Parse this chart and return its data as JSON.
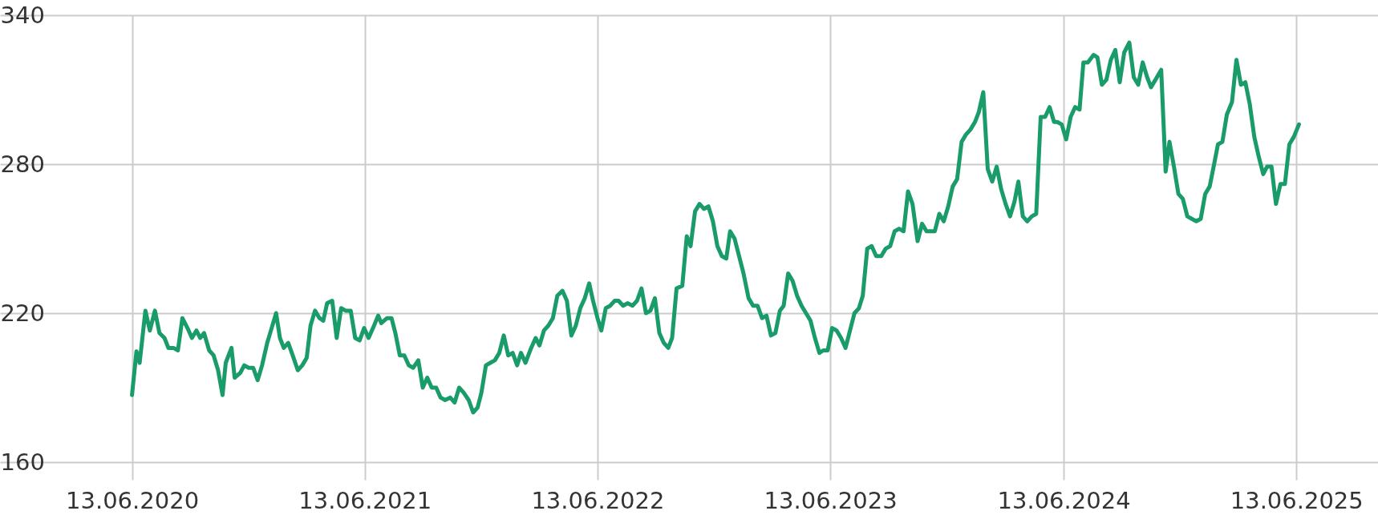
{
  "chart_data": {
    "type": "line",
    "grid": true,
    "marker": "none",
    "line_style": "solid",
    "xlim": [
      "2019-11-19",
      "2025-10-19"
    ],
    "ylim": [
      160,
      340
    ],
    "yticks": [
      160,
      220,
      280,
      340
    ],
    "xticks": [
      {
        "value": "2020-06-13",
        "label": "13.06.2020"
      },
      {
        "value": "2021-06-13",
        "label": "13.06.2021"
      },
      {
        "value": "2022-06-13",
        "label": "13.06.2022"
      },
      {
        "value": "2023-06-13",
        "label": "13.06.2023"
      },
      {
        "value": "2024-06-13",
        "label": "13.06.2024"
      },
      {
        "value": "2025-06-13",
        "label": "13.06.2025"
      }
    ],
    "x": [
      "2020-06-13",
      "2020-06-20",
      "2020-06-25",
      "2020-07-04",
      "2020-07-11",
      "2020-07-19",
      "2020-07-26",
      "2020-08-03",
      "2020-08-09",
      "2020-08-17",
      "2020-08-24",
      "2020-08-31",
      "2020-09-08",
      "2020-09-15",
      "2020-09-22",
      "2020-09-28",
      "2020-10-04",
      "2020-10-12",
      "2020-10-19",
      "2020-10-26",
      "2020-11-02",
      "2020-11-07",
      "2020-11-16",
      "2020-11-21",
      "2020-11-30",
      "2020-12-06",
      "2020-12-13",
      "2020-12-20",
      "2020-12-27",
      "2021-01-03",
      "2021-01-11",
      "2021-01-18",
      "2021-01-25",
      "2021-01-31",
      "2021-02-06",
      "2021-02-13",
      "2021-02-20",
      "2021-02-28",
      "2021-03-07",
      "2021-03-14",
      "2021-03-20",
      "2021-03-27",
      "2021-04-03",
      "2021-04-09",
      "2021-04-15",
      "2021-04-23",
      "2021-04-30",
      "2021-05-07",
      "2021-05-14",
      "2021-05-22",
      "2021-05-29",
      "2021-06-05",
      "2021-06-12",
      "2021-06-19",
      "2021-06-26",
      "2021-07-04",
      "2021-07-09",
      "2021-07-18",
      "2021-07-25",
      "2021-07-31",
      "2021-08-07",
      "2021-08-14",
      "2021-08-21",
      "2021-08-28",
      "2021-09-05",
      "2021-09-12",
      "2021-09-19",
      "2021-09-26",
      "2021-10-03",
      "2021-10-10",
      "2021-10-17",
      "2021-10-25",
      "2021-11-01",
      "2021-11-08",
      "2021-11-15",
      "2021-11-23",
      "2021-11-30",
      "2021-12-07",
      "2021-12-13",
      "2021-12-20",
      "2021-12-27",
      "2022-01-03",
      "2022-01-10",
      "2022-01-17",
      "2022-01-24",
      "2022-01-31",
      "2022-02-07",
      "2022-02-13",
      "2022-02-20",
      "2022-03-01",
      "2022-03-08",
      "2022-03-14",
      "2022-03-21",
      "2022-03-28",
      "2022-04-04",
      "2022-04-11",
      "2022-04-19",
      "2022-04-26",
      "2022-05-03",
      "2022-05-10",
      "2022-05-17",
      "2022-05-24",
      "2022-05-31",
      "2022-06-06",
      "2022-06-13",
      "2022-06-19",
      "2022-06-26",
      "2022-07-03",
      "2022-07-10",
      "2022-07-16",
      "2022-07-23",
      "2022-07-30",
      "2022-08-07",
      "2022-08-14",
      "2022-08-21",
      "2022-08-28",
      "2022-09-04",
      "2022-09-11",
      "2022-09-18",
      "2022-09-25",
      "2022-10-02",
      "2022-10-08",
      "2022-10-15",
      "2022-10-24",
      "2022-10-31",
      "2022-11-06",
      "2022-11-13",
      "2022-11-20",
      "2022-11-27",
      "2022-12-04",
      "2022-12-11",
      "2022-12-18",
      "2022-12-25",
      "2023-01-01",
      "2023-01-07",
      "2023-01-14",
      "2023-01-21",
      "2023-01-28",
      "2023-02-05",
      "2023-02-12",
      "2023-02-19",
      "2023-02-26",
      "2023-03-05",
      "2023-03-12",
      "2023-03-19",
      "2023-03-26",
      "2023-04-01",
      "2023-04-08",
      "2023-04-15",
      "2023-04-22",
      "2023-04-29",
      "2023-05-06",
      "2023-05-13",
      "2023-05-20",
      "2023-05-27",
      "2023-06-02",
      "2023-06-09",
      "2023-06-16",
      "2023-06-23",
      "2023-06-30",
      "2023-07-07",
      "2023-07-14",
      "2023-07-21",
      "2023-07-28",
      "2023-08-03",
      "2023-08-10",
      "2023-08-17",
      "2023-08-24",
      "2023-09-01",
      "2023-09-08",
      "2023-09-15",
      "2023-09-22",
      "2023-09-29",
      "2023-10-06",
      "2023-10-13",
      "2023-10-20",
      "2023-10-28",
      "2023-11-04",
      "2023-11-11",
      "2023-11-18",
      "2023-11-24",
      "2023-12-01",
      "2023-12-08",
      "2023-12-15",
      "2023-12-22",
      "2023-12-29",
      "2024-01-05",
      "2024-01-12",
      "2024-01-19",
      "2024-01-26",
      "2024-02-01",
      "2024-02-08",
      "2024-02-15",
      "2024-02-22",
      "2024-02-29",
      "2024-03-07",
      "2024-03-14",
      "2024-03-21",
      "2024-03-28",
      "2024-04-03",
      "2024-04-10",
      "2024-04-17",
      "2024-04-24",
      "2024-05-01",
      "2024-05-08",
      "2024-05-15",
      "2024-05-22",
      "2024-05-29",
      "2024-06-03",
      "2024-06-10",
      "2024-06-17",
      "2024-06-24",
      "2024-07-01",
      "2024-07-08",
      "2024-07-14",
      "2024-07-21",
      "2024-07-30",
      "2024-08-05",
      "2024-08-12",
      "2024-08-19",
      "2024-08-26",
      "2024-09-02",
      "2024-09-09",
      "2024-09-16",
      "2024-09-24",
      "2024-10-01",
      "2024-10-08",
      "2024-10-15",
      "2024-10-22",
      "2024-10-28",
      "2024-11-04",
      "2024-11-13",
      "2024-11-20",
      "2024-11-26",
      "2024-12-03",
      "2024-12-10",
      "2024-12-17",
      "2024-12-24",
      "2024-12-31",
      "2025-01-07",
      "2025-01-14",
      "2025-01-21",
      "2025-01-28",
      "2025-02-04",
      "2025-02-10",
      "2025-02-17",
      "2025-02-24",
      "2025-03-04",
      "2025-03-11",
      "2025-03-18",
      "2025-03-25",
      "2025-04-01",
      "2025-04-08",
      "2025-04-15",
      "2025-04-22",
      "2025-04-28",
      "2025-05-05",
      "2025-05-12",
      "2025-05-19",
      "2025-05-26",
      "2025-06-02",
      "2025-06-09",
      "2025-06-17"
    ],
    "series": [
      {
        "color": "#1a9c6a",
        "values": [
          187,
          204.6,
          200,
          221,
          213,
          221,
          212,
          210,
          206,
          206,
          205,
          218,
          214,
          210,
          213,
          210,
          212,
          205,
          203,
          197,
          187,
          200,
          206,
          194,
          196,
          199,
          198,
          198,
          193,
          199,
          208,
          214,
          220,
          210,
          206,
          208,
          203,
          197,
          199,
          202,
          215,
          221,
          218,
          217,
          224,
          225,
          210,
          222,
          221,
          221,
          210,
          209,
          214,
          210,
          214,
          219,
          216,
          218,
          218,
          212,
          203,
          203,
          199,
          198,
          201,
          190,
          194,
          190,
          190,
          186,
          185,
          186,
          184,
          190,
          188,
          185,
          180,
          182,
          188,
          199,
          200,
          201,
          204,
          211,
          203,
          204,
          199,
          204,
          200,
          206,
          210,
          207,
          213,
          215,
          218,
          227,
          229,
          225,
          211,
          215,
          222,
          226,
          232,
          225,
          218,
          213,
          222,
          223,
          225,
          225,
          223,
          224,
          223,
          225,
          230,
          220,
          221,
          226,
          212,
          208,
          206,
          210,
          230,
          231,
          251,
          247,
          261,
          264,
          262,
          263,
          257,
          247,
          243,
          242,
          253,
          250,
          243,
          236,
          226,
          223,
          223,
          218,
          219,
          211,
          212,
          221,
          223,
          236,
          233,
          227,
          223,
          220,
          217,
          210,
          204,
          205,
          205,
          214,
          213,
          210,
          206,
          213,
          220,
          222,
          227,
          246,
          247,
          243,
          243,
          246,
          247,
          253,
          254,
          253,
          269,
          264,
          249,
          256,
          253,
          253,
          253,
          260,
          257,
          263,
          271,
          274,
          289,
          292,
          294,
          297,
          301,
          309,
          278,
          273,
          279,
          270,
          264,
          259,
          265,
          273,
          259,
          257,
          259,
          260,
          299,
          299,
          303,
          297,
          297,
          296,
          290,
          299,
          303,
          302,
          321,
          321,
          324,
          323,
          312,
          314,
          322,
          326,
          313,
          325,
          329,
          315,
          312,
          321,
          315,
          311,
          314,
          318,
          277,
          289,
          279,
          268,
          266,
          259,
          258,
          257,
          258,
          268,
          271,
          280,
          288,
          289,
          300,
          305,
          322,
          312,
          313,
          304,
          291,
          283,
          276,
          279,
          279,
          264,
          272,
          272,
          288,
          291,
          296
        ]
      }
    ]
  }
}
